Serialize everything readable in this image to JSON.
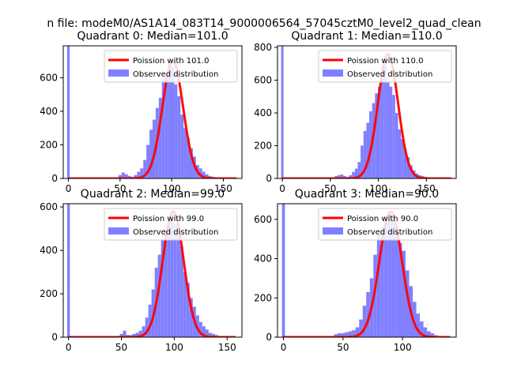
{
  "suptitle": "n file: modeM0/AS1A14_083T14_9000006564_57045cztM0_level2_quad_clean",
  "colors": {
    "fit": "#ff0000",
    "hist": "#8080ff",
    "axes": "#000000"
  },
  "chart_data": [
    {
      "type": "bar",
      "title": "Quadrant 0: Median=101.0",
      "median": 101.0,
      "xlim": [
        -5,
        168
      ],
      "ylim": [
        0,
        790
      ],
      "xticks": [
        0,
        50,
        100,
        150
      ],
      "yticks": [
        0,
        200,
        400,
        600
      ],
      "legend": {
        "position": "top-right",
        "fit_label": "Poission with 101.0",
        "hist_label": "Observed distribution"
      },
      "spike": {
        "x": 0,
        "width": 2.5,
        "height": 790
      },
      "hist": {
        "x": [
          50,
          53,
          56,
          59,
          62,
          65,
          68,
          71,
          74,
          77,
          80,
          83,
          86,
          89,
          92,
          95,
          98,
          101,
          104,
          107,
          110,
          113,
          116,
          119,
          122,
          125,
          128,
          131,
          134,
          137,
          140
        ],
        "width": 3,
        "values": [
          20,
          35,
          25,
          15,
          10,
          20,
          40,
          60,
          110,
          200,
          290,
          350,
          420,
          480,
          590,
          600,
          700,
          665,
          560,
          490,
          380,
          300,
          240,
          180,
          130,
          80,
          60,
          40,
          25,
          15,
          10
        ]
      },
      "fit": {
        "mean": 101.0,
        "peak": 700,
        "sigma": 10.05,
        "x_range": [
          0,
          163
        ]
      }
    },
    {
      "type": "bar",
      "title": "Quadrant 1: Median=110.0",
      "median": 110.0,
      "xlim": [
        -5,
        181
      ],
      "ylim": [
        0,
        810
      ],
      "xticks": [
        0,
        50,
        100,
        150
      ],
      "yticks": [
        0,
        200,
        400,
        600,
        800
      ],
      "legend": {
        "position": "top-right",
        "fit_label": "Poission with 110.0",
        "hist_label": "Observed distribution"
      },
      "spike": {
        "x": 0,
        "width": 2.5,
        "height": 810
      },
      "hist": {
        "x": [
          56,
          59,
          62,
          65,
          68,
          71,
          74,
          77,
          80,
          83,
          86,
          89,
          92,
          95,
          98,
          101,
          104,
          107,
          110,
          113,
          116,
          119,
          122,
          125,
          128,
          131,
          134,
          137,
          140,
          143,
          146,
          149
        ],
        "width": 3,
        "values": [
          15,
          20,
          25,
          15,
          10,
          20,
          40,
          60,
          100,
          200,
          290,
          340,
          410,
          460,
          520,
          560,
          620,
          700,
          590,
          560,
          510,
          400,
          300,
          240,
          180,
          130,
          80,
          50,
          30,
          20,
          15,
          10
        ]
      },
      "fit": {
        "mean": 110.0,
        "peak": 760,
        "sigma": 10.49,
        "x_range": [
          0,
          176
        ]
      }
    },
    {
      "type": "bar",
      "title": "Quadrant 2: Median=99.0",
      "median": 99.0,
      "xlim": [
        -5,
        164
      ],
      "ylim": [
        0,
        615
      ],
      "xticks": [
        0,
        50,
        100,
        150
      ],
      "yticks": [
        0,
        200,
        400,
        600
      ],
      "legend": {
        "position": "top-right",
        "fit_label": "Poission with 99.0",
        "hist_label": "Observed distribution"
      },
      "spike": {
        "x": 0,
        "width": 2.5,
        "height": 615
      },
      "hist": {
        "x": [
          50,
          53,
          56,
          59,
          62,
          65,
          68,
          71,
          74,
          77,
          80,
          83,
          86,
          89,
          92,
          95,
          98,
          101,
          104,
          107,
          110,
          113,
          116,
          119,
          122,
          125,
          128,
          131,
          134,
          137,
          140
        ],
        "width": 3,
        "values": [
          15,
          30,
          10,
          10,
          15,
          20,
          30,
          50,
          90,
          150,
          220,
          320,
          380,
          450,
          500,
          540,
          580,
          520,
          470,
          420,
          300,
          250,
          180,
          140,
          100,
          70,
          50,
          35,
          20,
          15,
          10
        ]
      },
      "fit": {
        "mean": 99.0,
        "peak": 580,
        "sigma": 9.95,
        "x_range": [
          0,
          158
        ]
      }
    },
    {
      "type": "bar",
      "title": "Quadrant 3: Median=90.0",
      "median": 90.0,
      "xlim": [
        -5,
        145
      ],
      "ylim": [
        0,
        680
      ],
      "xticks": [
        0,
        50,
        100
      ],
      "yticks": [
        0,
        200,
        400,
        600
      ],
      "legend": {
        "position": "top-right",
        "fit_label": "Poission with 90.0",
        "hist_label": "Observed distribution"
      },
      "spike": {
        "x": 0,
        "width": 2.5,
        "height": 680
      },
      "hist": {
        "x": [
          44,
          47,
          50,
          53,
          56,
          59,
          62,
          65,
          68,
          71,
          74,
          77,
          80,
          83,
          86,
          89,
          92,
          95,
          98,
          101,
          104,
          107,
          110,
          113,
          116,
          119,
          122,
          125,
          128
        ],
        "width": 3,
        "values": [
          15,
          20,
          20,
          25,
          30,
          35,
          50,
          90,
          160,
          230,
          300,
          420,
          520,
          560,
          600,
          640,
          610,
          570,
          480,
          440,
          340,
          260,
          180,
          120,
          80,
          50,
          30,
          20,
          10
        ]
      },
      "fit": {
        "mean": 90.0,
        "peak": 640,
        "sigma": 9.49,
        "x_range": [
          0,
          140
        ]
      }
    }
  ]
}
